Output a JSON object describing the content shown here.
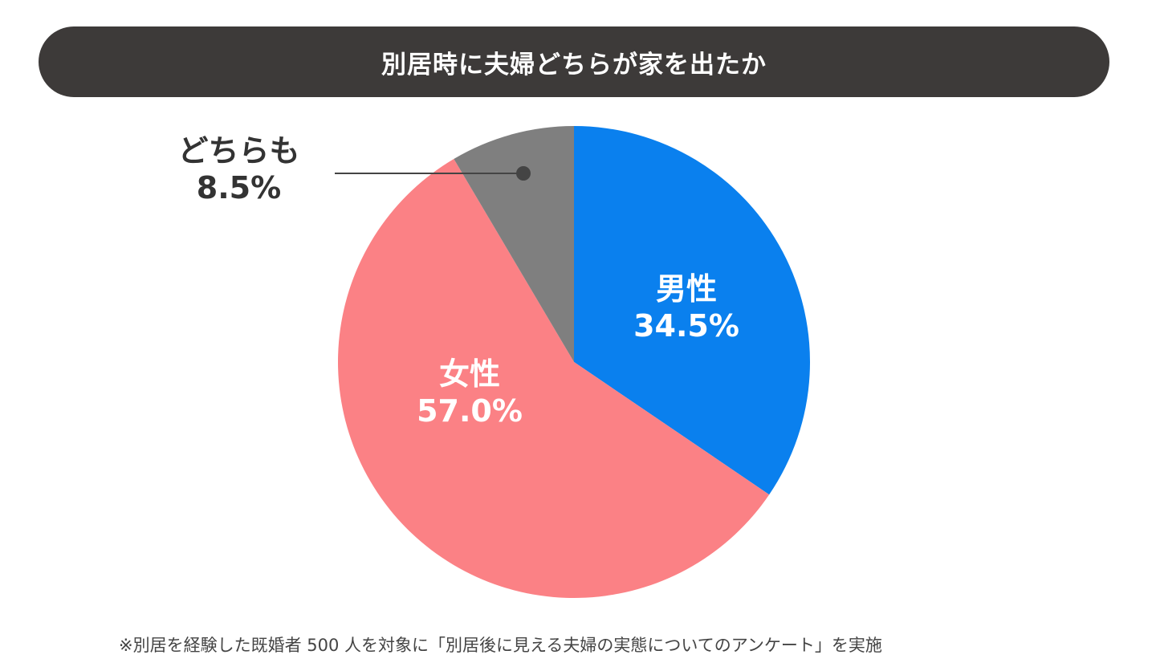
{
  "chart_data": {
    "type": "pie",
    "title": "別居時に夫婦どちらが家を出たか",
    "start": "top",
    "direction": "clockwise",
    "slices": [
      {
        "label": "男性",
        "value": 34.5,
        "value_label": "34.5%",
        "color": "#0a80ee"
      },
      {
        "label": "女性",
        "value": 57.0,
        "value_label": "57.0%",
        "color": "#fb8185"
      },
      {
        "label": "どちらも",
        "value": 8.5,
        "value_label": "8.5%",
        "color": "#7f7f7f"
      }
    ],
    "footnote": "※別居を経験した既婚者 500 人を対象に「別居後に見える夫婦の実態についてのアンケート」を実施"
  }
}
